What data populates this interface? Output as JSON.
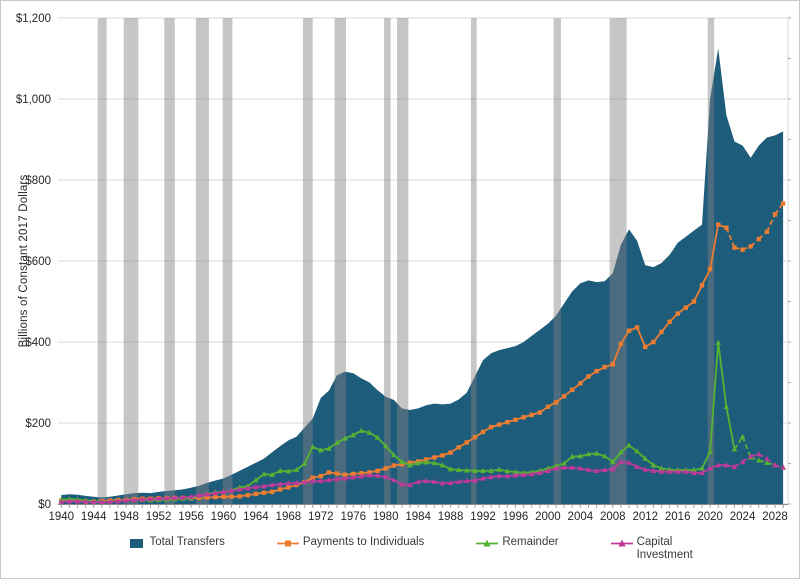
{
  "chart_data": {
    "type": "area",
    "title": "",
    "xlabel": "",
    "ylabel": "Billions of Constant 2017 Dollars",
    "ylim": [
      0,
      1200
    ],
    "xlim": [
      1939.6,
      2029.6
    ],
    "grid": "horizontal",
    "legend_position": "bottom",
    "y_ticks": [
      "$0",
      "$200",
      "$400",
      "$600",
      "$800",
      "$1,000",
      "$1,200"
    ],
    "y_tick_values": [
      0,
      200,
      400,
      600,
      800,
      1000,
      1200
    ],
    "x_ticks": [
      1940,
      1944,
      1948,
      1952,
      1956,
      1960,
      1964,
      1968,
      1972,
      1976,
      1980,
      1984,
      1988,
      1992,
      1996,
      2000,
      2004,
      2008,
      2012,
      2016,
      2020,
      2024,
      2028
    ],
    "year_start": 1940,
    "year_end": 2029,
    "recession_band_color": "#808080",
    "recession_band_opacity": 0.45,
    "recession_bands": [
      [
        1944.5,
        1945.6
      ],
      [
        1947.7,
        1949.5
      ],
      [
        1952.7,
        1954.0
      ],
      [
        1956.6,
        1958.2
      ],
      [
        1959.9,
        1961.1
      ],
      [
        1969.8,
        1971.0
      ],
      [
        1973.7,
        1975.1
      ],
      [
        1979.8,
        1980.6
      ],
      [
        1981.4,
        1982.8
      ],
      [
        1990.5,
        1991.2
      ],
      [
        2000.7,
        2001.6
      ],
      [
        2007.6,
        2009.7
      ],
      [
        2019.7,
        2020.5
      ]
    ],
    "series": [
      {
        "name": "Total Transfers",
        "type": "area",
        "color": "#1E5C7C",
        "values": [
          22,
          24,
          23,
          20,
          18,
          16,
          18,
          21,
          24,
          27,
          28,
          27,
          30,
          32,
          34,
          36,
          40,
          45,
          52,
          58,
          63,
          72,
          82,
          92,
          102,
          112,
          128,
          143,
          157,
          166,
          189,
          211,
          262,
          280,
          318,
          327,
          323,
          310,
          300,
          281,
          265,
          257,
          236,
          232,
          236,
          244,
          248,
          246,
          248,
          258,
          275,
          315,
          355,
          372,
          380,
          385,
          390,
          400,
          415,
          430,
          445,
          465,
          495,
          525,
          545,
          552,
          548,
          550,
          570,
          640,
          678,
          650,
          590,
          585,
          595,
          615,
          645,
          660,
          675,
          690,
          1000,
          1125,
          960,
          895,
          885,
          855,
          885,
          905,
          910,
          920
        ]
      },
      {
        "name": "Payments to Individuals",
        "type": "line",
        "color": "#ED7D31",
        "marker": "square",
        "dashed_from": 2022,
        "values": [
          8,
          8,
          7,
          6,
          6,
          7,
          9,
          10,
          10,
          12,
          13,
          13,
          14,
          14,
          15,
          15,
          14,
          15,
          16,
          17,
          18,
          18,
          19,
          22,
          25,
          28,
          30,
          36,
          41,
          47,
          54,
          65,
          69,
          78,
          75,
          72,
          74,
          76,
          78,
          82,
          88,
          95,
          98,
          102,
          105,
          110,
          115,
          120,
          127,
          140,
          152,
          165,
          178,
          190,
          196,
          202,
          208,
          214,
          220,
          226,
          240,
          251,
          266,
          282,
          298,
          315,
          328,
          338,
          345,
          395,
          428,
          436,
          388,
          400,
          425,
          450,
          470,
          485,
          500,
          540,
          580,
          690,
          682,
          633,
          628,
          636,
          654,
          672,
          715,
          742
        ]
      },
      {
        "name": "Remainder",
        "type": "line",
        "color": "#56B232",
        "marker": "triangle",
        "dashed_from": 2023,
        "values": [
          10,
          12,
          11,
          9,
          7,
          6,
          7,
          8,
          9,
          10,
          10,
          9,
          10,
          11,
          12,
          13,
          15,
          20,
          25,
          29,
          30,
          34,
          41,
          44,
          59,
          74,
          72,
          82,
          81,
          84,
          100,
          141,
          133,
          137,
          151,
          162,
          170,
          181,
          176,
          164,
          143,
          121,
          104,
          96,
          101,
          103,
          101,
          96,
          86,
          84,
          83,
          82,
          82,
          82,
          85,
          81,
          79,
          77,
          79,
          82,
          88,
          94,
          100,
          117,
          118,
          123,
          125,
          118,
          104,
          128,
          145,
          130,
          112,
          96,
          88,
          85,
          84,
          84,
          84,
          88,
          129,
          398,
          240,
          135,
          166,
          115,
          108,
          102,
          96,
          90
        ]
      },
      {
        "name": "Capital Investment",
        "type": "line",
        "color": "#BE3A9A",
        "marker": "triangle",
        "dashed_from": 2023,
        "values": [
          6,
          7,
          7,
          6,
          5,
          5,
          6,
          7,
          9,
          10,
          11,
          12,
          13,
          14,
          15,
          16,
          18,
          21,
          24,
          27,
          30,
          33,
          36,
          39,
          42,
          44,
          47,
          49,
          51,
          52,
          54,
          56,
          57,
          59,
          61,
          63,
          66,
          68,
          71,
          70,
          67,
          59,
          49,
          47,
          55,
          57,
          55,
          51,
          52,
          55,
          57,
          58,
          63,
          67,
          69,
          69,
          71,
          72,
          74,
          77,
          82,
          88,
          90,
          90,
          88,
          84,
          82,
          84,
          86,
          104,
          102,
          92,
          85,
          82,
          80,
          80,
          80,
          80,
          77,
          77,
          88,
          96,
          96,
          92,
          104,
          118,
          123,
          112,
          96,
          90
        ]
      }
    ]
  },
  "styles": {
    "gridline_color": "#d9d9d9",
    "axis_line_color": "#8c8c8c",
    "minor_tick_color": "#a6a6a6",
    "tick_label_color": "#262626",
    "background_color": "#ffffff"
  },
  "legend": {
    "items": [
      {
        "label": "Total Transfers"
      },
      {
        "label": "Payments to Individuals"
      },
      {
        "label": "Remainder"
      },
      {
        "label": "Capital Investment"
      }
    ]
  }
}
